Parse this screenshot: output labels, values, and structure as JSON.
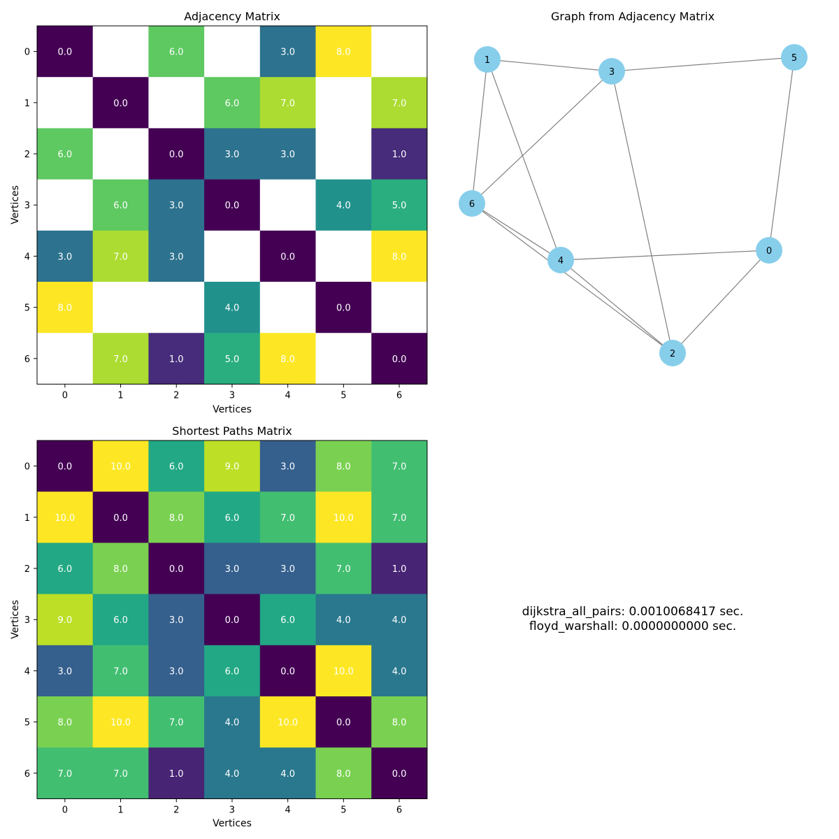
{
  "chart_data": [
    {
      "type": "heatmap",
      "title": "Adjacency Matrix",
      "xlabel": "Vertices",
      "ylabel": "Vertices",
      "x_ticks": [
        "0",
        "1",
        "2",
        "3",
        "4",
        "5",
        "6"
      ],
      "y_ticks": [
        "0",
        "1",
        "2",
        "3",
        "4",
        "5",
        "6"
      ],
      "colormap": "viridis",
      "value_range": [
        0,
        8
      ],
      "missing_color": "#ffffff",
      "values": [
        [
          0.0,
          null,
          6.0,
          null,
          3.0,
          8.0,
          null
        ],
        [
          null,
          0.0,
          null,
          6.0,
          7.0,
          null,
          7.0
        ],
        [
          6.0,
          null,
          0.0,
          3.0,
          3.0,
          null,
          1.0
        ],
        [
          null,
          6.0,
          3.0,
          0.0,
          null,
          4.0,
          5.0
        ],
        [
          3.0,
          7.0,
          3.0,
          null,
          0.0,
          null,
          8.0
        ],
        [
          8.0,
          null,
          null,
          4.0,
          null,
          0.0,
          null
        ],
        [
          null,
          7.0,
          1.0,
          5.0,
          8.0,
          null,
          0.0
        ]
      ]
    },
    {
      "type": "graph",
      "title": "Graph from Adjacency Matrix",
      "node_color": "#87ceeb",
      "edge_color": "#808080",
      "nodes": [
        "0",
        "1",
        "2",
        "3",
        "4",
        "5",
        "6"
      ],
      "edges": [
        [
          "0",
          "2"
        ],
        [
          "0",
          "4"
        ],
        [
          "0",
          "5"
        ],
        [
          "1",
          "3"
        ],
        [
          "1",
          "4"
        ],
        [
          "1",
          "6"
        ],
        [
          "2",
          "3"
        ],
        [
          "2",
          "4"
        ],
        [
          "2",
          "6"
        ],
        [
          "3",
          "5"
        ],
        [
          "3",
          "6"
        ],
        [
          "4",
          "6"
        ]
      ]
    },
    {
      "type": "heatmap",
      "title": "Shortest Paths Matrix",
      "xlabel": "Vertices",
      "ylabel": "Vertices",
      "x_ticks": [
        "0",
        "1",
        "2",
        "3",
        "4",
        "5",
        "6"
      ],
      "y_ticks": [
        "0",
        "1",
        "2",
        "3",
        "4",
        "5",
        "6"
      ],
      "colormap": "viridis",
      "value_range": [
        0,
        10
      ],
      "values": [
        [
          0.0,
          10.0,
          6.0,
          9.0,
          3.0,
          8.0,
          7.0
        ],
        [
          10.0,
          0.0,
          8.0,
          6.0,
          7.0,
          10.0,
          7.0
        ],
        [
          6.0,
          8.0,
          0.0,
          3.0,
          3.0,
          7.0,
          1.0
        ],
        [
          9.0,
          6.0,
          3.0,
          0.0,
          6.0,
          4.0,
          4.0
        ],
        [
          3.0,
          7.0,
          3.0,
          6.0,
          0.0,
          10.0,
          4.0
        ],
        [
          8.0,
          10.0,
          7.0,
          4.0,
          10.0,
          0.0,
          8.0
        ],
        [
          7.0,
          7.0,
          1.0,
          4.0,
          4.0,
          8.0,
          0.0
        ]
      ]
    }
  ],
  "timings": {
    "line1": "dijkstra_all_pairs: 0.0010068417 sec.",
    "line2": "floyd_warshall: 0.0000000000 sec."
  }
}
